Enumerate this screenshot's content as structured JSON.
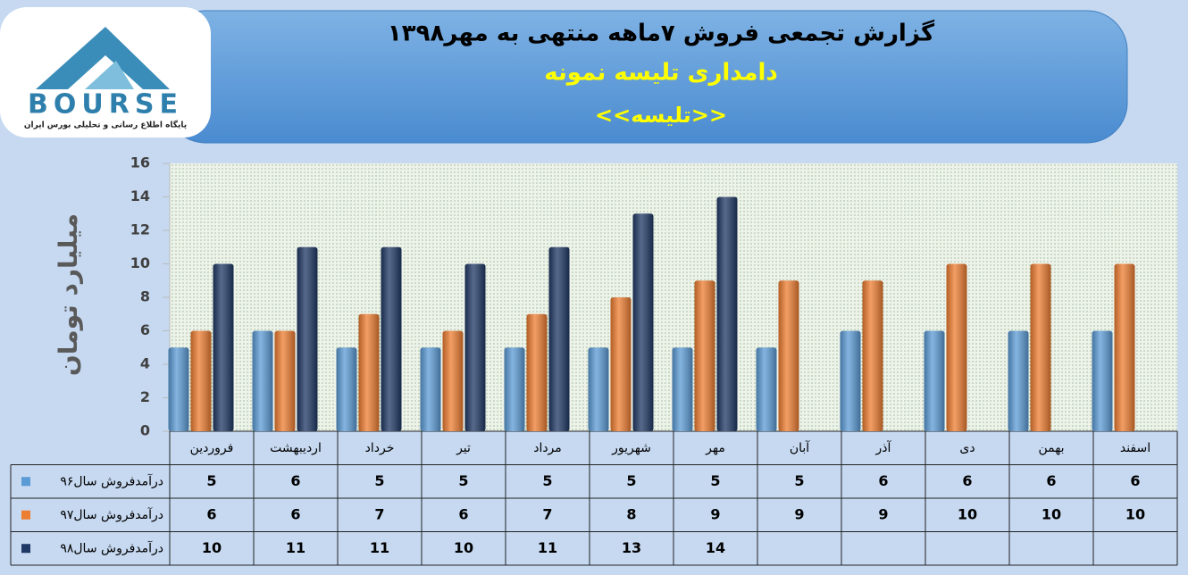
{
  "logo": {
    "brand": "BOURSE",
    "tagline": "پایگاه اطلاع رسانی و تحلیلی بورس ایران"
  },
  "chart_data": {
    "type": "bar",
    "title": "گزارش تجمعی فروش ۷ماهه منتهی به مهر۱۳۹۸",
    "subtitle": "دامداری تلیسه نمونه",
    "annotation": "<<تلیسه>>",
    "ylabel": "میلیارد تومان",
    "categories": [
      "فروردین",
      "اردیبهشت",
      "خرداد",
      "تیر",
      "مرداد",
      "شهریور",
      "مهر",
      "آبان",
      "آذر",
      "دی",
      "بهمن",
      "اسفند"
    ],
    "series": [
      {
        "name": "درآمدفروش سال۹۶",
        "color": "#5b9bd5",
        "values": [
          5,
          6,
          5,
          5,
          5,
          5,
          5,
          5,
          6,
          6,
          6,
          6
        ]
      },
      {
        "name": "درآمدفروش سال۹۷",
        "color": "#ed7d31",
        "values": [
          6,
          6,
          7,
          6,
          7,
          8,
          9,
          9,
          9,
          10,
          10,
          10
        ]
      },
      {
        "name": "درآمدفروش سال۹۸",
        "color": "#1f3864",
        "values": [
          10,
          11,
          11,
          10,
          11,
          13,
          14,
          null,
          null,
          null,
          null,
          null
        ]
      }
    ],
    "ylim": [
      0,
      16
    ],
    "yticks": [
      0,
      2,
      4,
      6,
      8,
      10,
      12,
      14,
      16
    ],
    "grid": false
  }
}
